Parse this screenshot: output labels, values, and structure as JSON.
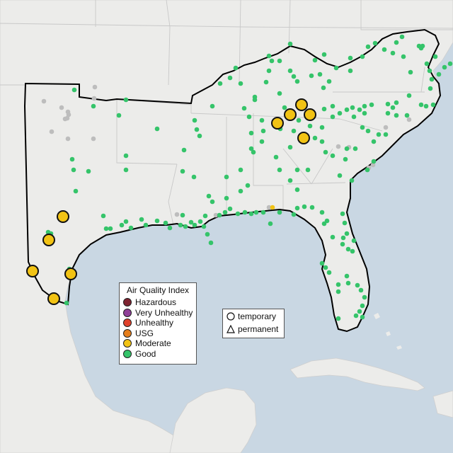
{
  "legend": {
    "title": "Air Quality Index",
    "categories": [
      {
        "label": "Hazardous",
        "color": "#7e2330"
      },
      {
        "label": "Very Unhealthy",
        "color": "#8f3f97"
      },
      {
        "label": "Unhealthy",
        "color": "#e0412b"
      },
      {
        "label": "USG",
        "color": "#e57e1c"
      },
      {
        "label": "Moderate",
        "color": "#f2c314"
      },
      {
        "label": "Good",
        "color": "#35c46a"
      }
    ]
  },
  "monitor_types": [
    {
      "label": "temporary",
      "shape": "circle-icon"
    },
    {
      "label": "permanent",
      "shape": "triangle-icon"
    }
  ],
  "colors": {
    "water": "#c9d7e3",
    "land": "#ececea",
    "region_border": "#000000",
    "no_data": "#bdbdbd"
  }
}
